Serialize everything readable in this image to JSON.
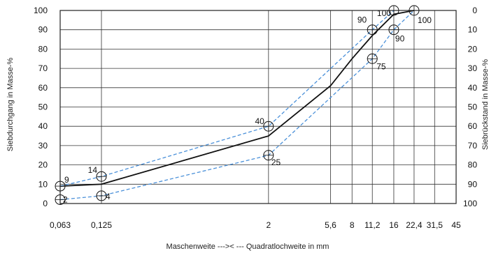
{
  "chart_data": {
    "type": "line",
    "x_scale": "log",
    "x_ticks": [
      "0,063",
      "0,125",
      "2",
      "5,6",
      "8",
      "11,2",
      "16",
      "22,4",
      "31,5",
      "45"
    ],
    "x_tick_values": [
      0.063,
      0.125,
      2,
      5.6,
      8,
      11.2,
      16,
      22.4,
      31.5,
      45
    ],
    "y_ticks_left": [
      0,
      10,
      20,
      30,
      40,
      50,
      60,
      70,
      80,
      90,
      100
    ],
    "y_ticks_right": [
      100,
      90,
      80,
      70,
      60,
      50,
      40,
      30,
      20,
      10,
      0
    ],
    "ylim": [
      0,
      100
    ],
    "xlabel": "Maschenweite --->< --- Quadratlochweite in mm",
    "ylabel_left": "Siebdurchgang in Masse-%",
    "ylabel_right": "Siebrückstand in Masse-%",
    "grid": true,
    "series": [
      {
        "role": "curve",
        "x": [
          0.063,
          0.125,
          2,
          5.6,
          8,
          11.2,
          16,
          22.4
        ],
        "y": [
          9,
          10,
          35,
          61,
          75,
          87,
          98,
          100
        ],
        "color": "#111111"
      },
      {
        "role": "upper-limit",
        "x": [
          0.063,
          0.125,
          2,
          11.2,
          16
        ],
        "y": [
          9,
          14,
          40,
          90,
          100
        ],
        "color": "#4a90d9"
      },
      {
        "role": "lower-limit",
        "x": [
          0.063,
          0.125,
          2,
          11.2,
          16,
          22.4
        ],
        "y": [
          2,
          4,
          25,
          75,
          90,
          100
        ],
        "color": "#4a90d9"
      }
    ],
    "markers": [
      {
        "x": 0.063,
        "y": 9,
        "label": "9"
      },
      {
        "x": 0.063,
        "y": 2,
        "label": "2"
      },
      {
        "x": 0.125,
        "y": 14,
        "label": "14"
      },
      {
        "x": 0.125,
        "y": 4,
        "label": "4"
      },
      {
        "x": 2,
        "y": 40,
        "label": "40"
      },
      {
        "x": 2,
        "y": 25,
        "label": "25"
      },
      {
        "x": 11.2,
        "y": 90,
        "label": "90"
      },
      {
        "x": 11.2,
        "y": 75,
        "label": "75"
      },
      {
        "x": 16,
        "y": 90,
        "label": "90"
      },
      {
        "x": 16,
        "y": 100,
        "label": "100"
      },
      {
        "x": 22.4,
        "y": 100,
        "label": "100"
      }
    ]
  }
}
